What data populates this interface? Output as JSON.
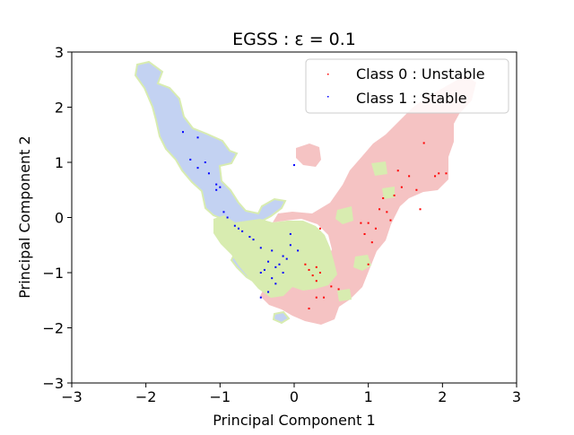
{
  "chart_data": {
    "type": "scatter",
    "title": "EGSS : ε = 0.1",
    "xlabel": "Principal Component 1",
    "ylabel": "Principal Component 2",
    "xlim": [
      -3,
      3
    ],
    "ylim": [
      -3,
      3
    ],
    "xticks": [
      -3,
      -2,
      -1,
      0,
      1,
      2,
      3
    ],
    "yticks": [
      -3,
      -2,
      -1,
      0,
      1,
      2,
      3
    ],
    "xtick_labels": [
      "−3",
      "−2",
      "−1",
      "0",
      "1",
      "2",
      "3"
    ],
    "ytick_labels": [
      "−3",
      "−2",
      "−1",
      "0",
      "1",
      "2",
      "3"
    ],
    "grid": false,
    "legend_position": "upper-right",
    "series": [
      {
        "name": "Class 0 : Unstable",
        "color": "#ff0000",
        "x": [
          1.75,
          1.95,
          1.9,
          2.05,
          1.4,
          1.55,
          1.65,
          1.2,
          1.35,
          1.45,
          1.15,
          1.25,
          1.7,
          0.9,
          1.0,
          1.1,
          1.3,
          0.95,
          1.05,
          1.0,
          0.35,
          0.3,
          0.15,
          0.2,
          0.25,
          0.3,
          0.4,
          0.5,
          0.6,
          0.2,
          0.3,
          0.35
        ],
        "y": [
          1.35,
          0.8,
          0.75,
          0.8,
          0.85,
          0.75,
          0.5,
          0.35,
          0.4,
          0.55,
          0.15,
          0.1,
          0.15,
          -0.1,
          -0.1,
          -0.2,
          -0.05,
          -0.3,
          -0.45,
          -0.85,
          -0.2,
          -0.9,
          -0.85,
          -0.95,
          -1.05,
          -1.15,
          -1.45,
          -1.25,
          -1.3,
          -1.65,
          -1.45,
          -1.0
        ],
        "marker_size": 1
      },
      {
        "name": "Class 1 : Stable",
        "color": "#0000ff",
        "x": [
          -1.5,
          -1.3,
          -1.4,
          -1.2,
          -1.3,
          -1.15,
          -1.05,
          -1.0,
          -1.05,
          -0.95,
          -0.9,
          -0.8,
          -0.75,
          -0.7,
          -0.55,
          -0.45,
          -0.3,
          -0.35,
          -0.25,
          -0.4,
          -0.2,
          -0.15,
          -0.1,
          -0.05,
          -0.15,
          -0.3,
          -0.25,
          -0.35,
          -0.45,
          -0.45,
          0.0,
          0.05,
          -0.6,
          -0.05
        ],
        "y": [
          1.55,
          1.45,
          1.05,
          1.0,
          0.9,
          0.8,
          0.6,
          0.55,
          0.5,
          0.1,
          0.0,
          -0.15,
          -0.2,
          -0.25,
          -0.4,
          -0.55,
          -0.6,
          -0.8,
          -0.9,
          -0.95,
          -0.85,
          -0.7,
          -0.75,
          -0.5,
          -1.0,
          -1.1,
          -1.2,
          -1.35,
          -1.45,
          -1.0,
          0.95,
          -0.6,
          -0.35,
          -0.3
        ],
        "marker_size": 1
      }
    ],
    "region_colors": {
      "class0_region": "#f5c3c3",
      "class1_region": "#c3d2f2",
      "ambiguous_region": "#d8ecb0"
    }
  }
}
